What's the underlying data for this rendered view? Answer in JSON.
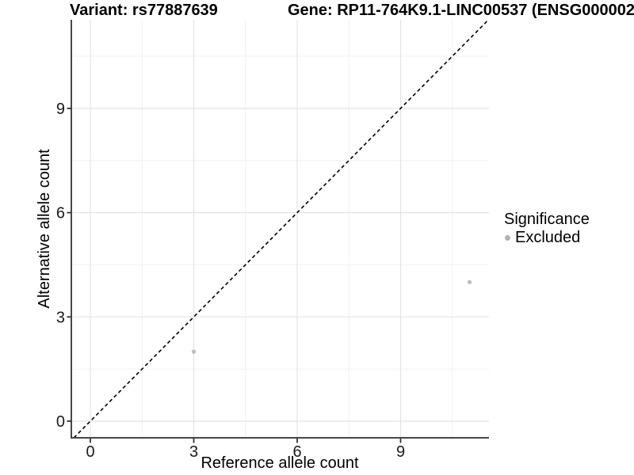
{
  "titles": {
    "variant": "Variant: rs77887639",
    "gene": "Gene: RP11-764K9.1-LINC00537 (ENSG000002"
  },
  "axes": {
    "x_label": "Reference allele count",
    "y_label": "Alternative allele count"
  },
  "legend": {
    "title": "Significance",
    "items": [
      {
        "label": "Excluded",
        "color": "#b3b3b3",
        "marker": "dot-icon"
      }
    ]
  },
  "colors": {
    "background": "#ffffff",
    "axis_line": "#474747",
    "tick_mark": "#333333",
    "tick_label": "#1a1a1a",
    "grid_major": "#e4e4e4",
    "grid_minor": "#f0f0f0",
    "point": "#bdbdbd",
    "reference_line": "#000000",
    "title_text": "#000000"
  },
  "chart_data": {
    "type": "scatter",
    "title": "Variant: rs77887639 | Gene: RP11-764K9.1-LINC00537 (ENSG000002",
    "xlabel": "Reference allele count",
    "ylabel": "Alternative allele count",
    "xlim": [
      -0.55,
      11.55
    ],
    "ylim": [
      -0.55,
      11.55
    ],
    "x_ticks": [
      0,
      3,
      6,
      9
    ],
    "y_ticks": [
      0,
      3,
      6,
      9
    ],
    "x_minor_gridlines": [
      1.5,
      4.5,
      7.5,
      10.5
    ],
    "y_minor_gridlines": [
      1.5,
      4.5,
      7.5,
      10.5
    ],
    "grid": true,
    "legend_position": "right",
    "series": [
      {
        "name": "Excluded",
        "color": "#bdbdbd",
        "points": [
          {
            "x": 3,
            "y": 2
          },
          {
            "x": 11,
            "y": 4
          }
        ]
      }
    ],
    "reference_line": {
      "kind": "identity",
      "slope": 1,
      "intercept": 0,
      "style": "dashed",
      "color": "#000000"
    }
  }
}
